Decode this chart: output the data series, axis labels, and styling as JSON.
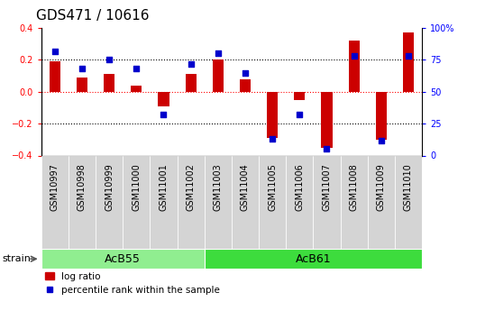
{
  "title": "GDS471 / 10616",
  "samples": [
    "GSM10997",
    "GSM10998",
    "GSM10999",
    "GSM11000",
    "GSM11001",
    "GSM11002",
    "GSM11003",
    "GSM11004",
    "GSM11005",
    "GSM11006",
    "GSM11007",
    "GSM11008",
    "GSM11009",
    "GSM11010"
  ],
  "log_ratio": [
    0.19,
    0.09,
    0.11,
    0.04,
    -0.09,
    0.11,
    0.2,
    0.08,
    -0.29,
    -0.05,
    -0.35,
    0.32,
    -0.3,
    0.37
  ],
  "percentile_rank": [
    82,
    68,
    75,
    68,
    32,
    72,
    80,
    65,
    13,
    32,
    5,
    78,
    12,
    78
  ],
  "groups": [
    {
      "label": "AcB55",
      "start": 0,
      "end": 5,
      "color": "#90ee90"
    },
    {
      "label": "AcB61",
      "start": 6,
      "end": 13,
      "color": "#3ddc3d"
    }
  ],
  "ylim": [
    -0.4,
    0.4
  ],
  "y2lim": [
    0,
    100
  ],
  "yticks": [
    -0.4,
    -0.2,
    0.0,
    0.2,
    0.4
  ],
  "y2ticks": [
    0,
    25,
    50,
    75,
    100
  ],
  "y2ticklabels": [
    "0",
    "25",
    "50",
    "75",
    "100%"
  ],
  "hlines_black": [
    0.2,
    -0.2
  ],
  "hline_red": 0.0,
  "bar_color": "#cc0000",
  "dot_color": "#0000cc",
  "plot_bg_color": "#ffffff",
  "tick_bg_color": "#d4d4d4",
  "strain_label": "strain",
  "legend_items": [
    "log ratio",
    "percentile rank within the sample"
  ],
  "title_fontsize": 11,
  "tick_fontsize": 7,
  "group_fontsize": 9,
  "legend_fontsize": 7.5
}
